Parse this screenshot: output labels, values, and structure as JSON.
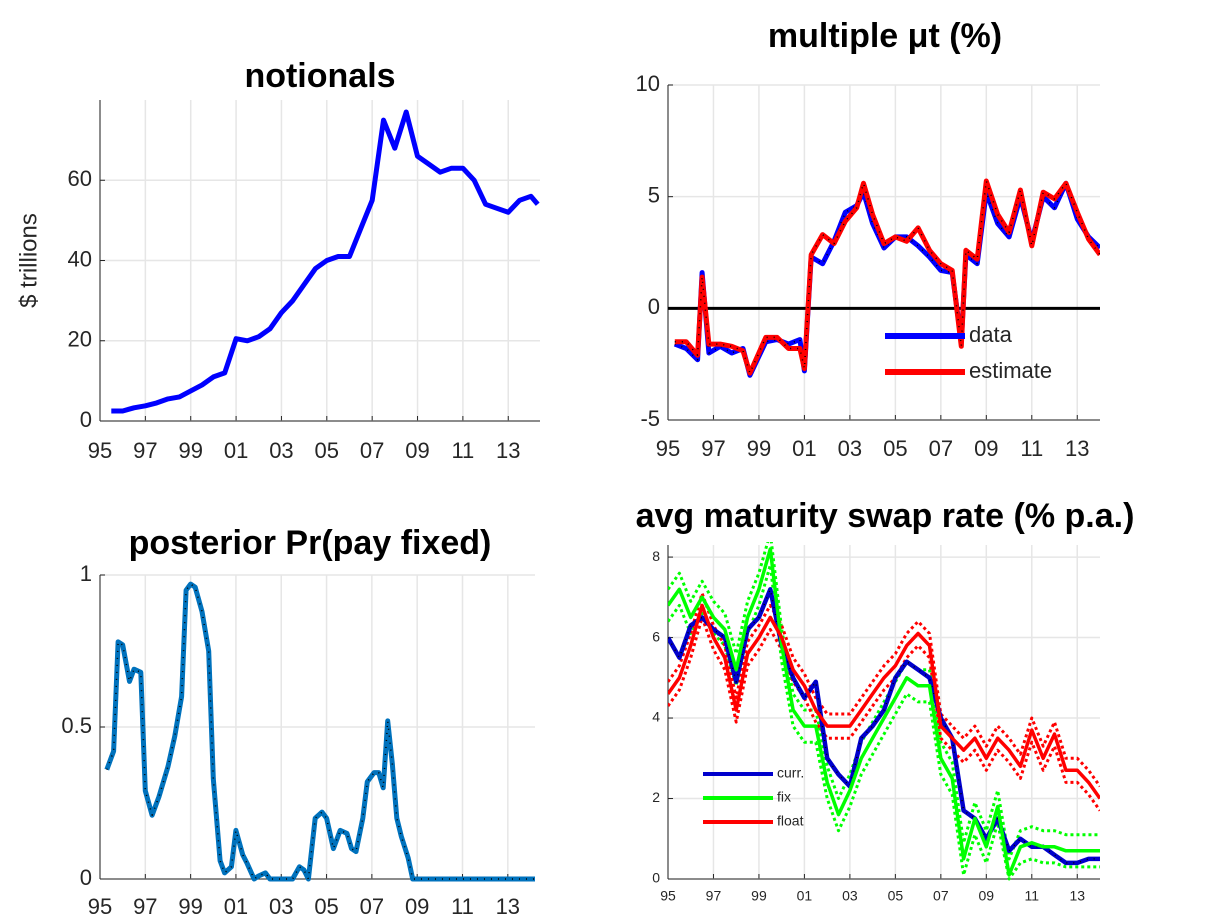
{
  "chart_data": [
    {
      "type": "line",
      "title": "notionals",
      "ylabel": "$ trillions",
      "x": [
        1995.5,
        1996,
        1996.5,
        1997,
        1997.5,
        1998,
        1998.5,
        1999,
        1999.5,
        2000,
        2000.5,
        2001,
        2001.5,
        2002,
        2002.5,
        2003,
        2003.5,
        2004,
        2004.5,
        2005,
        2005.5,
        2006,
        2006.5,
        2007,
        2007.5,
        2008,
        2008.5,
        2009,
        2009.5,
        2010,
        2010.5,
        2011,
        2011.5,
        2012,
        2012.5,
        2013,
        2013.5,
        2014,
        2014.3
      ],
      "series": [
        {
          "color": "#0000ff",
          "values": [
            2.5,
            2.5,
            3.3,
            3.8,
            4.5,
            5.5,
            6,
            7.5,
            9,
            11,
            12,
            20.5,
            20,
            21,
            23,
            27,
            30,
            34,
            38,
            40,
            41,
            41,
            48,
            55,
            75,
            68,
            77,
            66,
            64,
            62,
            63,
            63,
            60,
            54,
            53,
            52,
            55,
            56,
            54
          ]
        }
      ],
      "xlim": [
        1995,
        2014.4
      ],
      "ylim": [
        0,
        80
      ],
      "yticks": [
        0,
        20,
        40,
        60
      ],
      "xticks": [
        {
          "value": 1995,
          "label": "95"
        },
        {
          "value": 1997,
          "label": "97"
        },
        {
          "value": 1999,
          "label": "99"
        },
        {
          "value": 2001,
          "label": "01"
        },
        {
          "value": 2003,
          "label": "03"
        },
        {
          "value": 2005,
          "label": "05"
        },
        {
          "value": 2007,
          "label": "07"
        },
        {
          "value": 2009,
          "label": "09"
        },
        {
          "value": 2011,
          "label": "11"
        },
        {
          "value": 2013,
          "label": "13"
        }
      ],
      "grid": true
    },
    {
      "type": "line",
      "title": "multiple μt (%)",
      "x": [
        1995.3,
        1995.8,
        1996.3,
        1996.5,
        1996.8,
        1997.3,
        1997.8,
        1998.3,
        1998.6,
        1999.3,
        1999.8,
        2000.3,
        2000.8,
        2001.0,
        2001.3,
        2001.8,
        2002.3,
        2002.8,
        2003.3,
        2003.6,
        2004.0,
        2004.5,
        2005.0,
        2005.5,
        2006.0,
        2006.5,
        2007.0,
        2007.5,
        2007.9,
        2008.1,
        2008.6,
        2009.0,
        2009.5,
        2010.0,
        2010.5,
        2011.0,
        2011.5,
        2012.0,
        2012.5,
        2013.0,
        2013.5,
        2014.0
      ],
      "series": [
        {
          "name": "data",
          "color": "#0000ff",
          "values": [
            -1.6,
            -1.8,
            -2.3,
            1.6,
            -2.0,
            -1.7,
            -2.0,
            -1.8,
            -3.0,
            -1.5,
            -1.4,
            -1.6,
            -1.4,
            -2.8,
            2.3,
            2.0,
            3.0,
            4.3,
            4.6,
            5.2,
            3.8,
            2.7,
            3.2,
            3.2,
            2.8,
            2.3,
            1.7,
            1.6,
            -1.5,
            2.4,
            2.0,
            5.2,
            3.8,
            3.2,
            5.0,
            3.0,
            5.0,
            4.5,
            5.6,
            4.0,
            3.2,
            2.7
          ]
        },
        {
          "name": "estimate",
          "color": "#ff0000",
          "values": [
            -1.5,
            -1.5,
            -2.1,
            1.4,
            -1.6,
            -1.6,
            -1.7,
            -1.9,
            -2.9,
            -1.3,
            -1.3,
            -1.8,
            -1.8,
            -2.7,
            2.4,
            3.3,
            2.9,
            3.9,
            4.5,
            5.6,
            4.2,
            2.9,
            3.2,
            3.0,
            3.6,
            2.6,
            2.0,
            1.7,
            -1.7,
            2.6,
            2.2,
            5.7,
            4.2,
            3.4,
            5.3,
            2.8,
            5.2,
            4.9,
            5.6,
            4.3,
            3.1,
            2.4
          ]
        }
      ],
      "hline": 0,
      "xlim": [
        1995,
        2014
      ],
      "ylim": [
        -5,
        10
      ],
      "yticks": [
        -5,
        0,
        5,
        10
      ],
      "xticks": [
        {
          "value": 1995,
          "label": "95"
        },
        {
          "value": 1997,
          "label": "97"
        },
        {
          "value": 1999,
          "label": "99"
        },
        {
          "value": 2001,
          "label": "01"
        },
        {
          "value": 2003,
          "label": "03"
        },
        {
          "value": 2005,
          "label": "05"
        },
        {
          "value": 2007,
          "label": "07"
        },
        {
          "value": 2009,
          "label": "09"
        },
        {
          "value": 2011,
          "label": "11"
        },
        {
          "value": 2013,
          "label": "13"
        }
      ],
      "grid": true,
      "legend": "lower right"
    },
    {
      "type": "line",
      "title": "posterior Pr(pay fixed)",
      "x": [
        1995.3,
        1995.6,
        1995.8,
        1996.0,
        1996.3,
        1996.5,
        1996.8,
        1997.0,
        1997.3,
        1997.6,
        1998.0,
        1998.3,
        1998.6,
        1998.8,
        1999.0,
        1999.2,
        1999.5,
        1999.8,
        2000.0,
        2000.3,
        2000.5,
        2000.8,
        2001.0,
        2001.3,
        2001.5,
        2001.8,
        2002.0,
        2002.3,
        2002.5,
        2002.8,
        2003.5,
        2003.8,
        2004.0,
        2004.2,
        2004.5,
        2004.8,
        2005.0,
        2005.3,
        2005.6,
        2005.9,
        2006.1,
        2006.3,
        2006.6,
        2006.8,
        2007.1,
        2007.3,
        2007.5,
        2007.7,
        2007.9,
        2008.1,
        2008.3,
        2008.6,
        2008.8,
        2014.2
      ],
      "series": [
        {
          "color": "#0072bd",
          "values": [
            0.36,
            0.42,
            0.78,
            0.77,
            0.65,
            0.69,
            0.68,
            0.29,
            0.21,
            0.27,
            0.37,
            0.47,
            0.6,
            0.95,
            0.97,
            0.96,
            0.88,
            0.75,
            0.33,
            0.06,
            0.02,
            0.04,
            0.16,
            0.08,
            0.05,
            0.0,
            0.01,
            0.02,
            0.0,
            0.0,
            0.0,
            0.04,
            0.03,
            0.0,
            0.2,
            0.22,
            0.2,
            0.1,
            0.16,
            0.15,
            0.1,
            0.09,
            0.2,
            0.32,
            0.35,
            0.35,
            0.3,
            0.52,
            0.38,
            0.2,
            0.14,
            0.07,
            0.0,
            0.0
          ]
        }
      ],
      "xlim": [
        1995,
        2014.2
      ],
      "ylim": [
        0,
        1
      ],
      "yticks": [
        0,
        0.5,
        1
      ],
      "xticks": [
        {
          "value": 1995,
          "label": "95"
        },
        {
          "value": 1997,
          "label": "97"
        },
        {
          "value": 1999,
          "label": "99"
        },
        {
          "value": 2001,
          "label": "01"
        },
        {
          "value": 2003,
          "label": "03"
        },
        {
          "value": 2005,
          "label": "05"
        },
        {
          "value": 2007,
          "label": "07"
        },
        {
          "value": 2009,
          "label": "09"
        },
        {
          "value": 2011,
          "label": "11"
        },
        {
          "value": 2013,
          "label": "13"
        }
      ],
      "grid": true
    },
    {
      "type": "line",
      "title": "avg maturity swap rate (% p.a.)",
      "x": [
        1995,
        1995.5,
        1996,
        1996.5,
        1997,
        1997.5,
        1998,
        1998.5,
        1999,
        1999.5,
        2000,
        2000.5,
        2001,
        2001.5,
        2002,
        2002.5,
        2003,
        2003.5,
        2004,
        2004.5,
        2005,
        2005.5,
        2006,
        2006.5,
        2007,
        2007.5,
        2008,
        2008.5,
        2009,
        2009.5,
        2010,
        2010.5,
        2011,
        2011.5,
        2012,
        2012.5,
        2013,
        2013.5,
        2014
      ],
      "series": [
        {
          "name": "curr.",
          "color": "#0000cc",
          "values": [
            6.0,
            5.5,
            6.3,
            6.5,
            6.2,
            6.0,
            4.9,
            6.2,
            6.5,
            7.2,
            5.8,
            5.0,
            4.5,
            4.9,
            3.0,
            2.6,
            2.3,
            3.5,
            3.8,
            4.2,
            5.0,
            5.4,
            5.2,
            5.0,
            4.0,
            3.5,
            1.7,
            1.5,
            1.0,
            1.5,
            0.7,
            1.0,
            0.8,
            0.8,
            0.6,
            0.4,
            0.4,
            0.5,
            0.5
          ]
        },
        {
          "name": "fix",
          "color": "#00ff00",
          "values": [
            6.8,
            7.2,
            6.5,
            7.0,
            6.5,
            6.2,
            5.2,
            6.5,
            7.2,
            8.2,
            5.8,
            4.2,
            3.8,
            3.8,
            2.4,
            1.6,
            2.2,
            3.0,
            3.5,
            4.0,
            4.5,
            5.0,
            4.8,
            4.8,
            3.0,
            2.5,
            0.5,
            1.5,
            0.8,
            1.8,
            0.1,
            0.8,
            0.9,
            0.8,
            0.8,
            0.7,
            0.7,
            0.7,
            0.7
          ],
          "lower": [
            6.4,
            6.8,
            6.1,
            6.6,
            6.1,
            5.8,
            4.8,
            6.1,
            6.8,
            7.8,
            5.4,
            3.8,
            3.4,
            3.4,
            2.0,
            1.2,
            1.8,
            2.6,
            3.1,
            3.6,
            4.1,
            4.6,
            4.4,
            4.4,
            2.6,
            2.1,
            0.1,
            1.1,
            0.4,
            1.4,
            0.0,
            0.4,
            0.5,
            0.4,
            0.4,
            0.3,
            0.3,
            0.3,
            0.3
          ],
          "upper": [
            7.2,
            7.6,
            6.9,
            7.4,
            6.9,
            6.6,
            5.6,
            6.9,
            7.6,
            8.6,
            6.2,
            4.6,
            4.2,
            4.2,
            2.8,
            2.0,
            2.6,
            3.4,
            3.9,
            4.4,
            4.9,
            5.4,
            5.2,
            5.2,
            3.4,
            2.9,
            0.9,
            1.9,
            1.2,
            2.2,
            0.5,
            1.2,
            1.3,
            1.2,
            1.2,
            1.1,
            1.1,
            1.1,
            1.1
          ]
        },
        {
          "name": "float",
          "color": "#ff0000",
          "values": [
            4.6,
            5.0,
            5.8,
            6.8,
            6.0,
            5.5,
            4.2,
            5.6,
            6.0,
            6.5,
            6.0,
            5.2,
            4.8,
            4.2,
            3.8,
            3.8,
            3.8,
            4.2,
            4.6,
            5.0,
            5.3,
            5.8,
            6.1,
            5.8,
            3.8,
            3.5,
            3.2,
            3.5,
            3.0,
            3.5,
            3.2,
            2.8,
            3.7,
            3.0,
            3.6,
            2.7,
            2.7,
            2.4,
            2.0
          ],
          "lower": [
            4.3,
            4.7,
            5.5,
            6.5,
            5.7,
            5.2,
            3.9,
            5.3,
            5.7,
            6.2,
            5.7,
            4.9,
            4.5,
            3.9,
            3.5,
            3.5,
            3.5,
            3.9,
            4.3,
            4.7,
            5.0,
            5.5,
            5.8,
            5.5,
            3.5,
            3.2,
            2.9,
            3.2,
            2.7,
            3.2,
            2.9,
            2.5,
            3.4,
            2.7,
            3.3,
            2.4,
            2.4,
            2.1,
            1.7
          ],
          "upper": [
            4.9,
            5.3,
            6.1,
            7.1,
            6.3,
            5.8,
            4.5,
            5.9,
            6.3,
            6.8,
            6.3,
            5.5,
            5.1,
            4.5,
            4.1,
            4.1,
            4.1,
            4.5,
            4.9,
            5.3,
            5.6,
            6.1,
            6.4,
            6.1,
            4.1,
            3.8,
            3.5,
            3.8,
            3.3,
            3.8,
            3.5,
            3.1,
            4.0,
            3.3,
            3.9,
            3.0,
            3.0,
            2.7,
            2.3
          ]
        }
      ],
      "xlim": [
        1995,
        2014
      ],
      "ylim": [
        0,
        8.3
      ],
      "yticks": [
        0,
        2,
        4,
        6,
        8
      ],
      "xticks": [
        {
          "value": 1995,
          "label": "95"
        },
        {
          "value": 1997,
          "label": "97"
        },
        {
          "value": 1999,
          "label": "99"
        },
        {
          "value": 2001,
          "label": "01"
        },
        {
          "value": 2003,
          "label": "03"
        },
        {
          "value": 2005,
          "label": "05"
        },
        {
          "value": 2007,
          "label": "07"
        },
        {
          "value": 2009,
          "label": "09"
        },
        {
          "value": 2011,
          "label": "11"
        },
        {
          "value": 2013,
          "label": "13"
        }
      ],
      "grid": true,
      "legend": "lower left"
    }
  ]
}
